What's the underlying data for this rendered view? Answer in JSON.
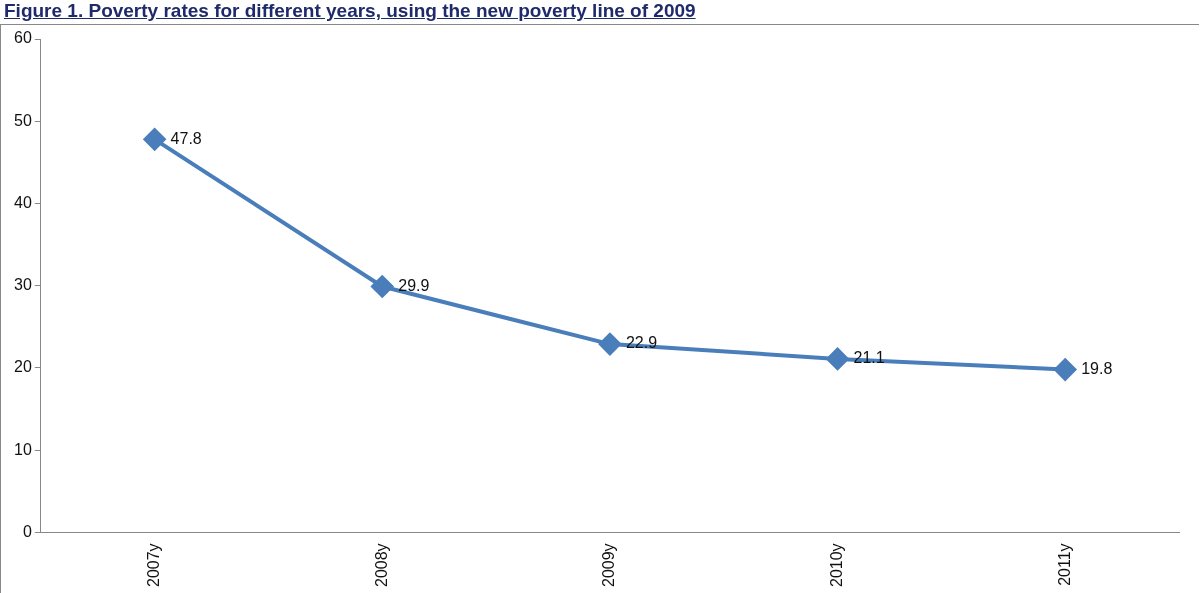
{
  "chart_data": {
    "type": "line",
    "title": "Figure 1. Poverty rates for different years, using the new poverty line of 2009",
    "categories": [
      "2007y",
      "2008y",
      "2009y",
      "2010y",
      "2011y"
    ],
    "series": [
      {
        "color": "#4a7ebb",
        "values": [
          47.8,
          29.9,
          22.9,
          21.1,
          19.8
        ]
      }
    ],
    "ylim": [
      0,
      60
    ],
    "yticks": [
      0,
      10,
      20,
      30,
      40,
      50,
      60
    ],
    "grid": false,
    "legend": false,
    "marker": "diamond",
    "line_style": "solid",
    "data_labels": true
  }
}
